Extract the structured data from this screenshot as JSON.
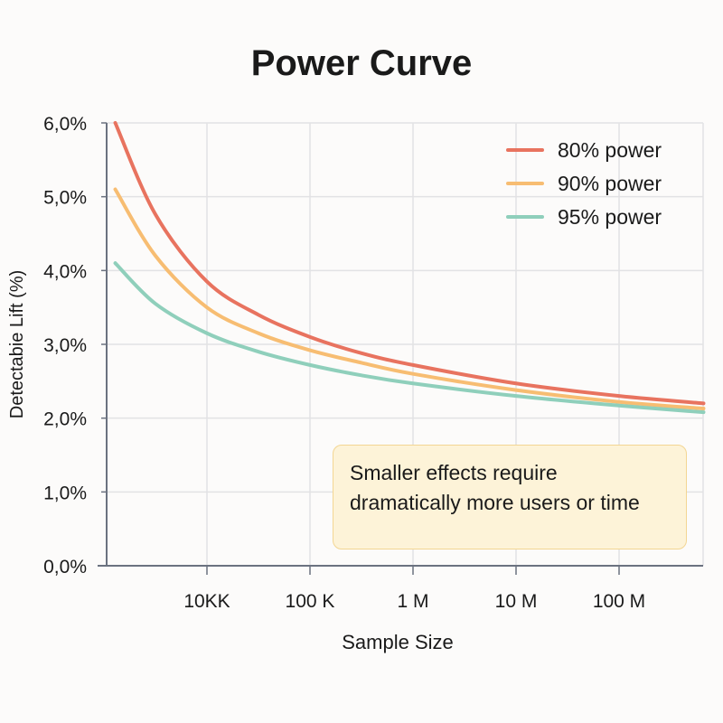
{
  "chart_data": {
    "type": "line",
    "title": "Power Curve",
    "xlabel": "Sample Size",
    "ylabel": "Detectabie Lift (%)",
    "x_scale": "log10",
    "x_log10": [
      3.11,
      3.5,
      4,
      4.5,
      5,
      5.5,
      6,
      7,
      8,
      8.82
    ],
    "xlim_log10": [
      3.1,
      8.82
    ],
    "ylim": [
      0,
      6
    ],
    "x_ticks": [
      {
        "log10": 4,
        "label": "10KK"
      },
      {
        "log10": 5,
        "label": "100 K"
      },
      {
        "log10": 6,
        "label": "1 M"
      },
      {
        "log10": 7,
        "label": "10 M"
      },
      {
        "log10": 8,
        "label": "100 M"
      }
    ],
    "y_ticks": [
      {
        "v": 0,
        "label": "0,0%"
      },
      {
        "v": 1,
        "label": "1,0%"
      },
      {
        "v": 2,
        "label": "2,0%"
      },
      {
        "v": 3,
        "label": "3,0%"
      },
      {
        "v": 4,
        "label": "4,0%"
      },
      {
        "v": 5,
        "label": "5,0%"
      },
      {
        "v": 6,
        "label": "6,0%"
      }
    ],
    "grid": true,
    "legend_position": "top-right",
    "series": [
      {
        "name": "80% power",
        "color": "#e8735f",
        "values": [
          6.0,
          4.76,
          3.85,
          3.4,
          3.1,
          2.88,
          2.72,
          2.47,
          2.3,
          2.2
        ]
      },
      {
        "name": "90% power",
        "color": "#f7bd72",
        "values": [
          5.1,
          4.2,
          3.5,
          3.15,
          2.92,
          2.75,
          2.6,
          2.38,
          2.22,
          2.13
        ]
      },
      {
        "name": "95% power",
        "color": "#8fcfbb",
        "values": [
          4.1,
          3.55,
          3.15,
          2.9,
          2.72,
          2.58,
          2.47,
          2.3,
          2.17,
          2.08
        ]
      }
    ],
    "annotation": "Smaller effects require dramatically more users or time"
  }
}
